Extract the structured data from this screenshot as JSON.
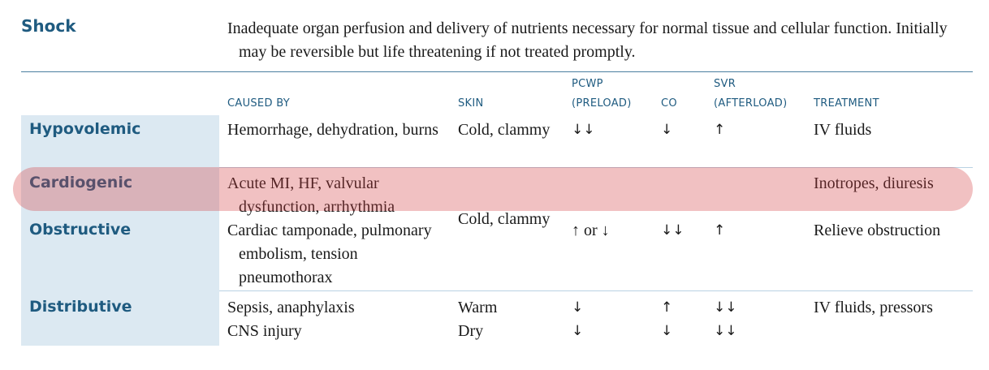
{
  "title": "Shock",
  "definition": "Inadequate organ perfusion and delivery of nutrients necessary for normal tissue and cellular function. Initially may be reversible but life threatening if not treated promptly.",
  "headers": {
    "caused_by": "CAUSED BY",
    "skin": "SKIN",
    "pcwp_line1": "PCWP",
    "pcwp_line2": "(PRELOAD)",
    "co": "CO",
    "svr_line1": "SVR",
    "svr_line2": "(AFTERLOAD)",
    "treatment": "TREATMENT"
  },
  "rows": {
    "hypovolemic": {
      "name": "Hypovolemic",
      "caused_by": "Hemorrhage, dehydration, burns",
      "skin": "Cold, clammy",
      "pcwp": "↓↓",
      "co": "↓",
      "svr": "↑",
      "treatment": "IV fluids"
    },
    "cardiogenic": {
      "name": "Cardiogenic",
      "caused_by": "Acute MI, HF, valvular dysfunction, arrhythmia",
      "treatment": "Inotropes, diuresis"
    },
    "obstructive": {
      "name": "Obstructive",
      "caused_by": "Cardiac tamponade, pulmonary embolism, tension pneumothorax",
      "skin": "Cold, clammy",
      "pcwp": "↑ or ↓",
      "co": "↓↓",
      "svr": "↑",
      "treatment": "Relieve obstruction"
    },
    "distributive": {
      "name": "Distributive",
      "caused_by_1": "Sepsis, anaphylaxis",
      "caused_by_2": "CNS injury",
      "skin_1": "Warm",
      "skin_2": "Dry",
      "pcwp_1": "↓",
      "pcwp_2": "↓",
      "co_1": "↑",
      "co_2": "↓",
      "svr_1": "↓↓",
      "svr_2": "↓↓",
      "treatment": "IV fluids, pressors"
    }
  },
  "colors": {
    "heading_blue": "#1f5b80",
    "sidebar_fill": "#dce9f2",
    "highlight": "#d23e42"
  }
}
